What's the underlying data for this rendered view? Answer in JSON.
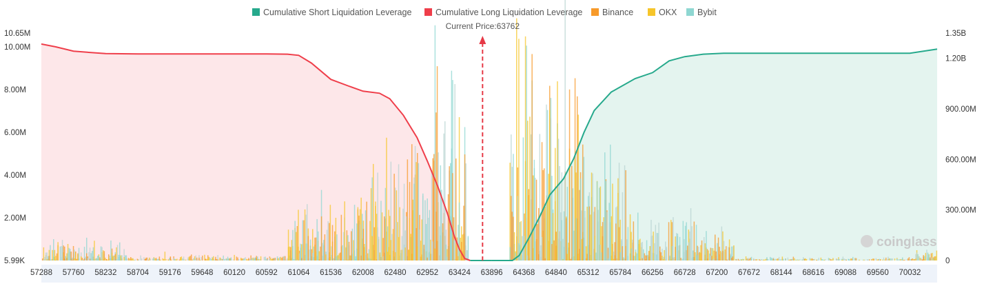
{
  "chart_data": {
    "type": "bar",
    "legend": {
      "placement": "top-center",
      "items": [
        {
          "name": "Cumulative Short Liquidation Leverage",
          "color": "#26a98c"
        },
        {
          "name": "Cumulative Long Liquidation Leverage",
          "color": "#ef3e4a"
        },
        {
          "name": "Binance",
          "color": "#f79a2a"
        },
        {
          "name": "OKX",
          "color": "#f6c52a"
        },
        {
          "name": "Bybit",
          "color": "#8fd7d2"
        }
      ]
    },
    "current_price": {
      "label": "Current Price:63762",
      "value": 63762
    },
    "x_ticks": [
      "57288",
      "57760",
      "58232",
      "58704",
      "59176",
      "59648",
      "60120",
      "60592",
      "61064",
      "61536",
      "62008",
      "62480",
      "62952",
      "63424",
      "63896",
      "64368",
      "64840",
      "65312",
      "65784",
      "66256",
      "66728",
      "67200",
      "67672",
      "68144",
      "68616",
      "69088",
      "69560",
      "70032"
    ],
    "xlim": [
      57288,
      70432
    ],
    "y_left": {
      "ticks": [
        {
          "label": "5.99K",
          "value": 0.00599
        },
        {
          "label": "2.00M",
          "value": 2.0
        },
        {
          "label": "4.00M",
          "value": 4.0
        },
        {
          "label": "6.00M",
          "value": 6.0
        },
        {
          "label": "8.00M",
          "value": 8.0
        },
        {
          "label": "10.00M",
          "value": 10.0
        },
        {
          "label": "10.65M",
          "value": 10.65
        }
      ],
      "unit": "M",
      "ylim": [
        0.00599,
        10.65
      ]
    },
    "y_right": {
      "ticks": [
        {
          "label": "0",
          "value": 0
        },
        {
          "label": "300.00M",
          "value": 300
        },
        {
          "label": "600.00M",
          "value": 600
        },
        {
          "label": "900.00M",
          "value": 900
        },
        {
          "label": "1.20B",
          "value": 1200
        },
        {
          "label": "1.35B",
          "value": 1350
        }
      ],
      "unit": "M",
      "ylim": [
        0,
        1350
      ]
    },
    "cumulative_long": {
      "name": "Cumulative Long Liquidation Leverage",
      "x": [
        57288,
        57500,
        57760,
        58000,
        58232,
        58704,
        59176,
        59648,
        60120,
        60592,
        60900,
        61064,
        61250,
        61536,
        61800,
        62008,
        62250,
        62400,
        62600,
        62800,
        62952,
        63100,
        63250,
        63350,
        63424,
        63500,
        63580
      ],
      "y": [
        1285,
        1268,
        1243,
        1235,
        1228,
        1226,
        1226,
        1226,
        1226,
        1226,
        1225,
        1218,
        1172,
        1075,
        1035,
        1005,
        993,
        960,
        862,
        730,
        590,
        445,
        275,
        140,
        65,
        12,
        0
      ]
    },
    "cumulative_short": {
      "name": "Cumulative Short Liquidation Leverage",
      "x": [
        63900,
        64200,
        64300,
        64450,
        64600,
        64750,
        64950,
        65100,
        65250,
        65400,
        65650,
        66000,
        66256,
        66500,
        66728,
        67000,
        67300,
        67672,
        68144,
        68616,
        69088,
        69560,
        70032,
        70432
      ],
      "y": [
        0,
        0,
        30,
        140,
        260,
        390,
        485,
        605,
        760,
        890,
        1000,
        1080,
        1115,
        1185,
        1210,
        1225,
        1230,
        1230,
        1230,
        1230,
        1230,
        1230,
        1230,
        1255
      ]
    },
    "current_price_marker": {
      "x": 63762
    },
    "watermark": "coinglass"
  }
}
